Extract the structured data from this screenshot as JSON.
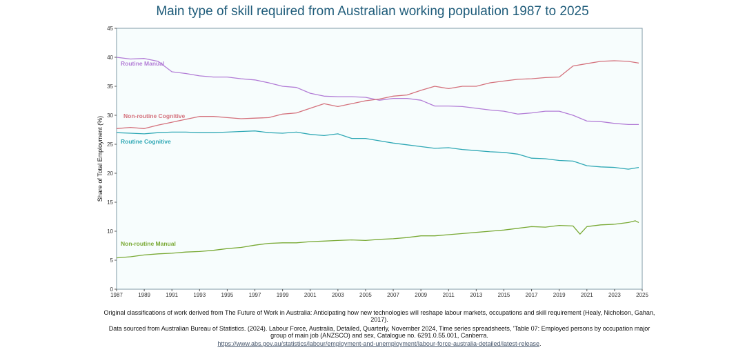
{
  "title": "Main type of skill required from Australian working population 1987 to 2025",
  "notes": {
    "line1": "Original classifications of work derived from  The Future of Work in Australia: Anticipating how new technologies will reshape labour markets, occupations and skill requirement (Healy, Nicholson, Gahan, 2017).",
    "line2": "Data sourced from Australian Bureau of Statistics. (2024). Labour Force, Australia, Detailed, Quarterly, November 2024,  Time series spreadsheets, 'Table 07: Employed persons by occupation major group of main job (ANZSCO) and sex, Catalogue no. 6291.0.55.001, Canberra.",
    "link": "https://www.abs.gov.au/statistics/labour/employment-and-unemployment/labour-force-australia-detailed/latest-release",
    "link_suffix": "."
  },
  "colors": {
    "title": "#1f5c7a",
    "plot_background": "#f7fdfd",
    "frame": "#7f9aa6"
  },
  "chart_data": {
    "type": "line",
    "ylabel": "Share of Total Employment (%)",
    "xlabel": "",
    "xlim": [
      1987,
      2025
    ],
    "ylim": [
      0,
      45
    ],
    "x_ticks": [
      "1987",
      "1989",
      "1991",
      "1993",
      "1995",
      "1997",
      "1999",
      "2001",
      "2003",
      "2005",
      "2007",
      "2009",
      "2011",
      "2013",
      "2015",
      "2017",
      "2019",
      "2021",
      "2023",
      "2025"
    ],
    "y_ticks": [
      "0",
      "5",
      "10",
      "15",
      "20",
      "25",
      "30",
      "35",
      "40",
      "45"
    ],
    "grid": false,
    "series": [
      {
        "name": "Routine Manual",
        "color": "#b27cd6",
        "label_year": 1987.3,
        "label_value": 38.6,
        "x": [
          1987,
          1988,
          1989,
          1990,
          1991,
          1992,
          1993,
          1994,
          1995,
          1996,
          1997,
          1998,
          1999,
          2000,
          2001,
          2002,
          2003,
          2004,
          2005,
          2006,
          2007,
          2008,
          2009,
          2010,
          2011,
          2012,
          2013,
          2014,
          2015,
          2016,
          2017,
          2018,
          2019,
          2020,
          2021,
          2022,
          2023,
          2024,
          2024.75
        ],
        "y": [
          40,
          39.7,
          39.8,
          39.3,
          37.5,
          37.2,
          36.8,
          36.6,
          36.6,
          36.3,
          36.1,
          35.6,
          35.0,
          34.8,
          33.8,
          33.3,
          33.2,
          33.2,
          33.1,
          32.6,
          32.9,
          32.9,
          32.6,
          31.6,
          31.6,
          31.5,
          31.2,
          30.9,
          30.7,
          30.2,
          30.4,
          30.7,
          30.7,
          30.0,
          29.0,
          28.9,
          28.6,
          28.4,
          28.4
        ]
      },
      {
        "name": "Non-routine Cognitive",
        "color": "#d4717c",
        "label_year": 1987.5,
        "label_value": 29.5,
        "x": [
          1987,
          1988,
          1989,
          1990,
          1991,
          1992,
          1993,
          1994,
          1995,
          1996,
          1997,
          1998,
          1999,
          2000,
          2001,
          2002,
          2003,
          2004,
          2005,
          2006,
          2007,
          2008,
          2009,
          2010,
          2011,
          2012,
          2013,
          2014,
          2015,
          2016,
          2017,
          2018,
          2019,
          2020,
          2021,
          2022,
          2023,
          2024,
          2024.75
        ],
        "y": [
          27.7,
          27.9,
          27.7,
          28.3,
          28.8,
          29.3,
          29.8,
          29.8,
          29.6,
          29.4,
          29.5,
          29.6,
          30.2,
          30.4,
          31.2,
          32.0,
          31.5,
          32.0,
          32.5,
          32.8,
          33.3,
          33.5,
          34.3,
          35.0,
          34.6,
          35.0,
          35.0,
          35.6,
          35.9,
          36.2,
          36.3,
          36.5,
          36.6,
          38.5,
          38.9,
          39.3,
          39.4,
          39.3,
          39.0
        ]
      },
      {
        "name": "Routine Cognitive",
        "color": "#2fa8b5",
        "label_year": 1987.3,
        "label_value": 25.1,
        "x": [
          1987,
          1988,
          1989,
          1990,
          1991,
          1992,
          1993,
          1994,
          1995,
          1996,
          1997,
          1998,
          1999,
          2000,
          2001,
          2002,
          2003,
          2004,
          2005,
          2006,
          2007,
          2008,
          2009,
          2010,
          2011,
          2012,
          2013,
          2014,
          2015,
          2016,
          2017,
          2018,
          2019,
          2020,
          2021,
          2022,
          2023,
          2024,
          2024.75
        ],
        "y": [
          27.0,
          26.9,
          26.8,
          27.0,
          27.1,
          27.1,
          27.0,
          27.0,
          27.1,
          27.2,
          27.3,
          27.0,
          26.9,
          27.1,
          26.7,
          26.5,
          26.8,
          26.0,
          26.0,
          25.6,
          25.2,
          24.9,
          24.6,
          24.3,
          24.4,
          24.1,
          23.9,
          23.7,
          23.6,
          23.3,
          22.6,
          22.5,
          22.2,
          22.1,
          21.3,
          21.1,
          21.0,
          20.7,
          21.0
        ]
      },
      {
        "name": "Non-routine Manual",
        "color": "#79a934",
        "label_year": 1987.3,
        "label_value": 7.5,
        "x": [
          1987,
          1988,
          1989,
          1990,
          1991,
          1992,
          1993,
          1994,
          1995,
          1996,
          1997,
          1998,
          1999,
          2000,
          2001,
          2002,
          2003,
          2004,
          2005,
          2006,
          2007,
          2008,
          2009,
          2010,
          2011,
          2012,
          2013,
          2014,
          2015,
          2016,
          2017,
          2018,
          2019,
          2020,
          2020.5,
          2021,
          2022,
          2023,
          2024,
          2024.5,
          2024.75
        ],
        "y": [
          5.4,
          5.6,
          5.9,
          6.1,
          6.2,
          6.4,
          6.5,
          6.7,
          7.0,
          7.2,
          7.6,
          7.9,
          8.0,
          8.0,
          8.2,
          8.3,
          8.4,
          8.5,
          8.4,
          8.6,
          8.7,
          8.9,
          9.2,
          9.2,
          9.4,
          9.6,
          9.8,
          10.0,
          10.2,
          10.5,
          10.8,
          10.7,
          11.0,
          10.9,
          9.5,
          10.8,
          11.1,
          11.2,
          11.5,
          11.8,
          11.5
        ]
      }
    ]
  }
}
